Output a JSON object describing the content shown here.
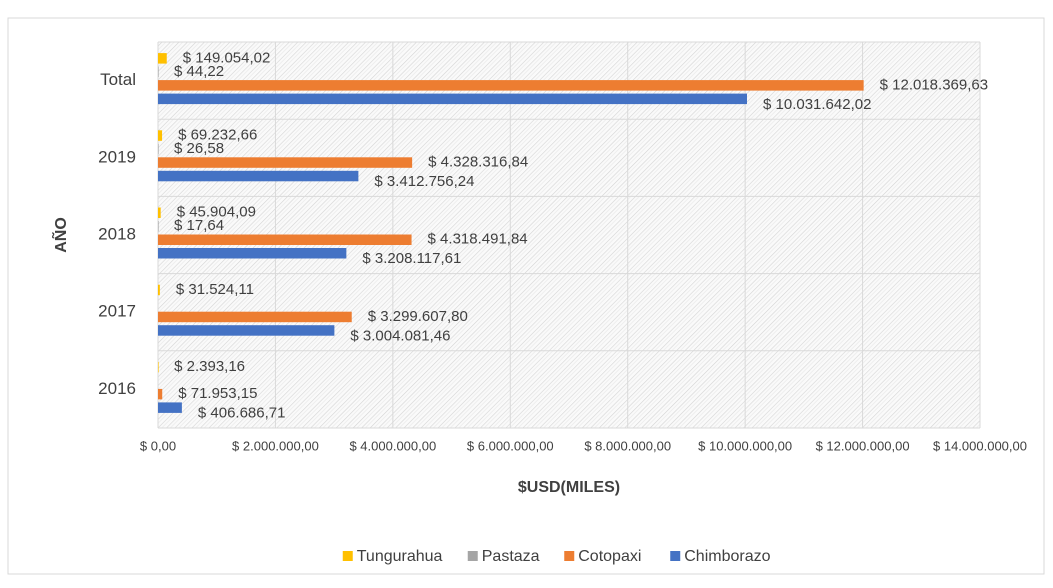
{
  "chart_data": {
    "type": "barh",
    "xlabel": "$USD(MILES)",
    "ylabel": "AÑO",
    "categories": [
      "2016",
      "2017",
      "2018",
      "2019",
      "Total"
    ],
    "series": [
      {
        "name": "Tungurahua",
        "color": "#FFC000",
        "values": [
          2393.16,
          31524.11,
          45904.09,
          69232.66,
          149054.02
        ],
        "value_labels": [
          "$ 2.393,16",
          "$ 31.524,11",
          "$ 45.904,09",
          "$ 69.232,66",
          "$ 149.054,02"
        ]
      },
      {
        "name": "Pastaza",
        "color": "#A5A5A5",
        "values": [
          null,
          null,
          17.64,
          26.58,
          44.22
        ],
        "value_labels": [
          null,
          null,
          "$ 17,64",
          "$ 26,58",
          "$ 44,22"
        ]
      },
      {
        "name": "Cotopaxi",
        "color": "#ED7D31",
        "values": [
          71953.15,
          3299607.8,
          4318491.84,
          4328316.84,
          12018369.63
        ],
        "value_labels": [
          "$ 71.953,15",
          "$ 3.299.607,80",
          "$ 4.318.491,84",
          "$ 4.328.316,84",
          "$ 12.018.369,63"
        ]
      },
      {
        "name": "Chimborazo",
        "color": "#4472C4",
        "values": [
          406686.71,
          3004081.46,
          3208117.61,
          3412756.24,
          10031642.02
        ],
        "value_labels": [
          "$ 406.686,71",
          "$ 3.004.081,46",
          "$ 3.208.117,61",
          "$ 3.412.756,24",
          "$ 10.031.642,02"
        ]
      }
    ],
    "xlim": [
      0,
      14000000
    ],
    "xticks": [
      {
        "value": 0,
        "label": "$ 0,00"
      },
      {
        "value": 2000000,
        "label": "$ 2.000.000,00"
      },
      {
        "value": 4000000,
        "label": "$ 4.000.000,00"
      },
      {
        "value": 6000000,
        "label": "$ 6.000.000,00"
      },
      {
        "value": 8000000,
        "label": "$ 8.000.000,00"
      },
      {
        "value": 10000000,
        "label": "$ 10.000.000,00"
      },
      {
        "value": 12000000,
        "label": "$ 12.000.000,00"
      },
      {
        "value": 14000000,
        "label": "$ 14.000.000,00"
      }
    ],
    "grid": true,
    "legend": "bottom"
  }
}
